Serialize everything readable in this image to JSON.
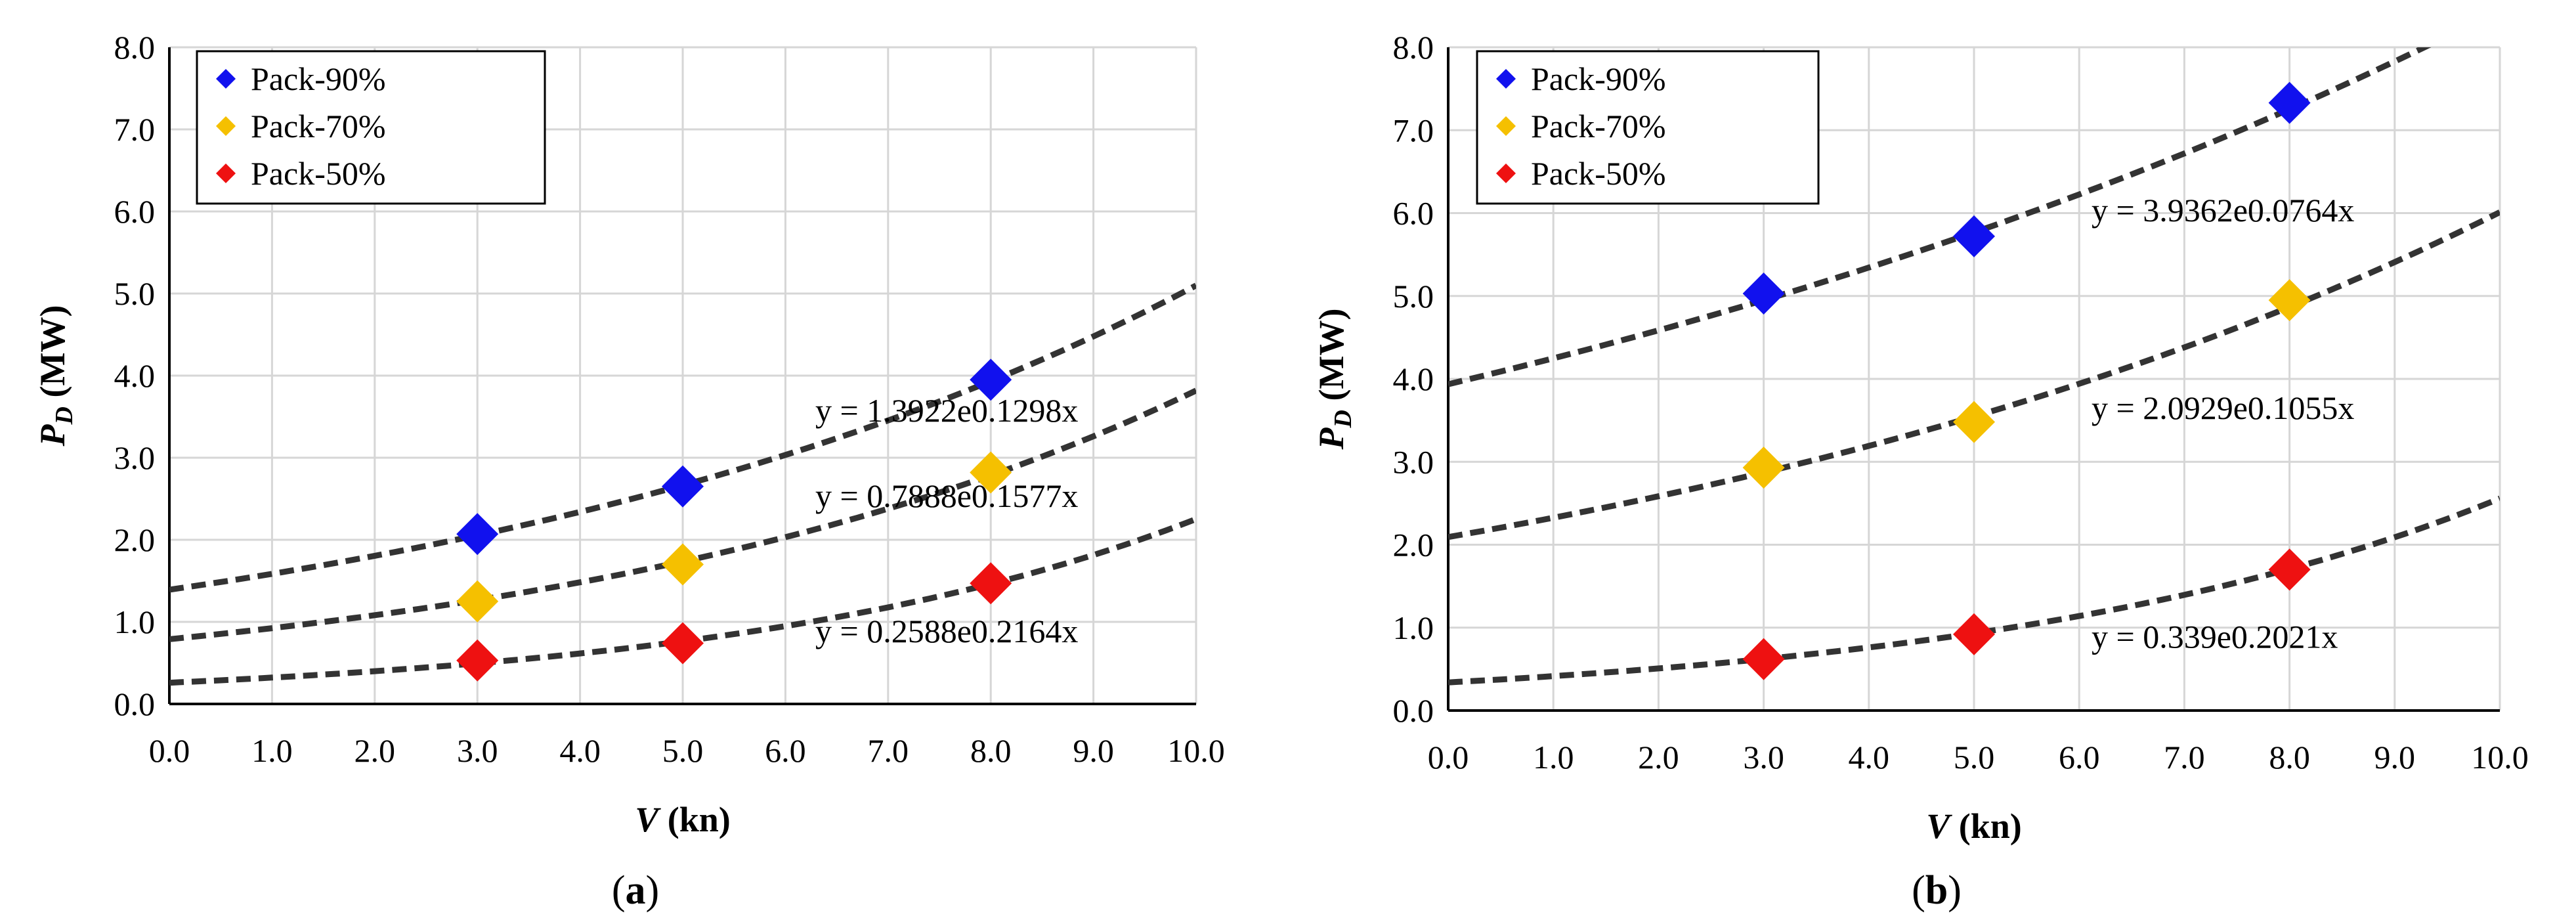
{
  "colors": {
    "series_90": "#1111ee",
    "series_70": "#f5c000",
    "series_50": "#ee1111",
    "trendline": "#333333",
    "grid": "#d6d6d6",
    "axis": "#000000"
  },
  "chart_data": [
    {
      "type": "scatter",
      "panel": "a",
      "caption": {
        "open": "(",
        "letter": "a",
        "close": ")"
      },
      "xlabel": {
        "main": "V",
        "unit": " (kn)"
      },
      "ylabel": {
        "main": "P",
        "sub": "D",
        "unit": " (MW)"
      },
      "xlim": [
        0,
        10
      ],
      "ylim": [
        0,
        8
      ],
      "xticks": [
        "0.0",
        "1.0",
        "2.0",
        "3.0",
        "4.0",
        "5.0",
        "6.0",
        "7.0",
        "8.0",
        "9.0",
        "10.0"
      ],
      "yticks": [
        "0.0",
        "1.0",
        "2.0",
        "3.0",
        "4.0",
        "5.0",
        "6.0",
        "7.0",
        "8.0"
      ],
      "grid": true,
      "legend_position": "top-left",
      "series": [
        {
          "name": "Pack-90%",
          "color_key": "series_90",
          "x": [
            3,
            5,
            8
          ],
          "y": [
            2.07,
            2.65,
            3.95
          ],
          "fit": {
            "a": 1.3922,
            "b": 0.1298
          },
          "equation": "y = 1.3922e0.1298x"
        },
        {
          "name": "Pack-70%",
          "color_key": "series_70",
          "x": [
            3,
            5,
            8
          ],
          "y": [
            1.25,
            1.7,
            2.82
          ],
          "fit": {
            "a": 0.7888,
            "b": 0.1577
          },
          "equation": "y = 0.7888e0.1577x"
        },
        {
          "name": "Pack-50%",
          "color_key": "series_50",
          "x": [
            3,
            5,
            8
          ],
          "y": [
            0.53,
            0.74,
            1.47
          ],
          "fit": {
            "a": 0.2588,
            "b": 0.2164
          },
          "equation": "y = 0.2588e0.2164x"
        }
      ]
    },
    {
      "type": "scatter",
      "panel": "b",
      "caption": {
        "open": "(",
        "letter": "b",
        "close": ")"
      },
      "xlabel": {
        "main": "V",
        "unit": " (kn)"
      },
      "ylabel": {
        "main": "P",
        "sub": "D",
        "unit": " (MW)"
      },
      "xlim": [
        0,
        10
      ],
      "ylim": [
        0,
        8
      ],
      "xticks": [
        "0.0",
        "1.0",
        "2.0",
        "3.0",
        "4.0",
        "5.0",
        "6.0",
        "7.0",
        "8.0",
        "9.0",
        "10.0"
      ],
      "yticks": [
        "0.0",
        "1.0",
        "2.0",
        "3.0",
        "4.0",
        "5.0",
        "6.0",
        "7.0",
        "8.0"
      ],
      "grid": true,
      "legend_position": "top-left",
      "series": [
        {
          "name": "Pack-90%",
          "color_key": "series_90",
          "x": [
            3,
            5,
            8
          ],
          "y": [
            5.03,
            5.72,
            7.33
          ],
          "fit": {
            "a": 3.9362,
            "b": 0.0764
          },
          "equation": "y = 3.9362e0.0764x"
        },
        {
          "name": "Pack-70%",
          "color_key": "series_70",
          "x": [
            3,
            5,
            8
          ],
          "y": [
            2.93,
            3.48,
            4.95
          ],
          "fit": {
            "a": 2.0929,
            "b": 0.1055
          },
          "equation": "y = 2.0929e0.1055x"
        },
        {
          "name": "Pack-50%",
          "color_key": "series_50",
          "x": [
            3,
            5,
            8
          ],
          "y": [
            0.62,
            0.92,
            1.7
          ],
          "fit": {
            "a": 0.339,
            "b": 0.2021
          },
          "equation": "y = 0.339e0.2021x"
        }
      ]
    }
  ]
}
